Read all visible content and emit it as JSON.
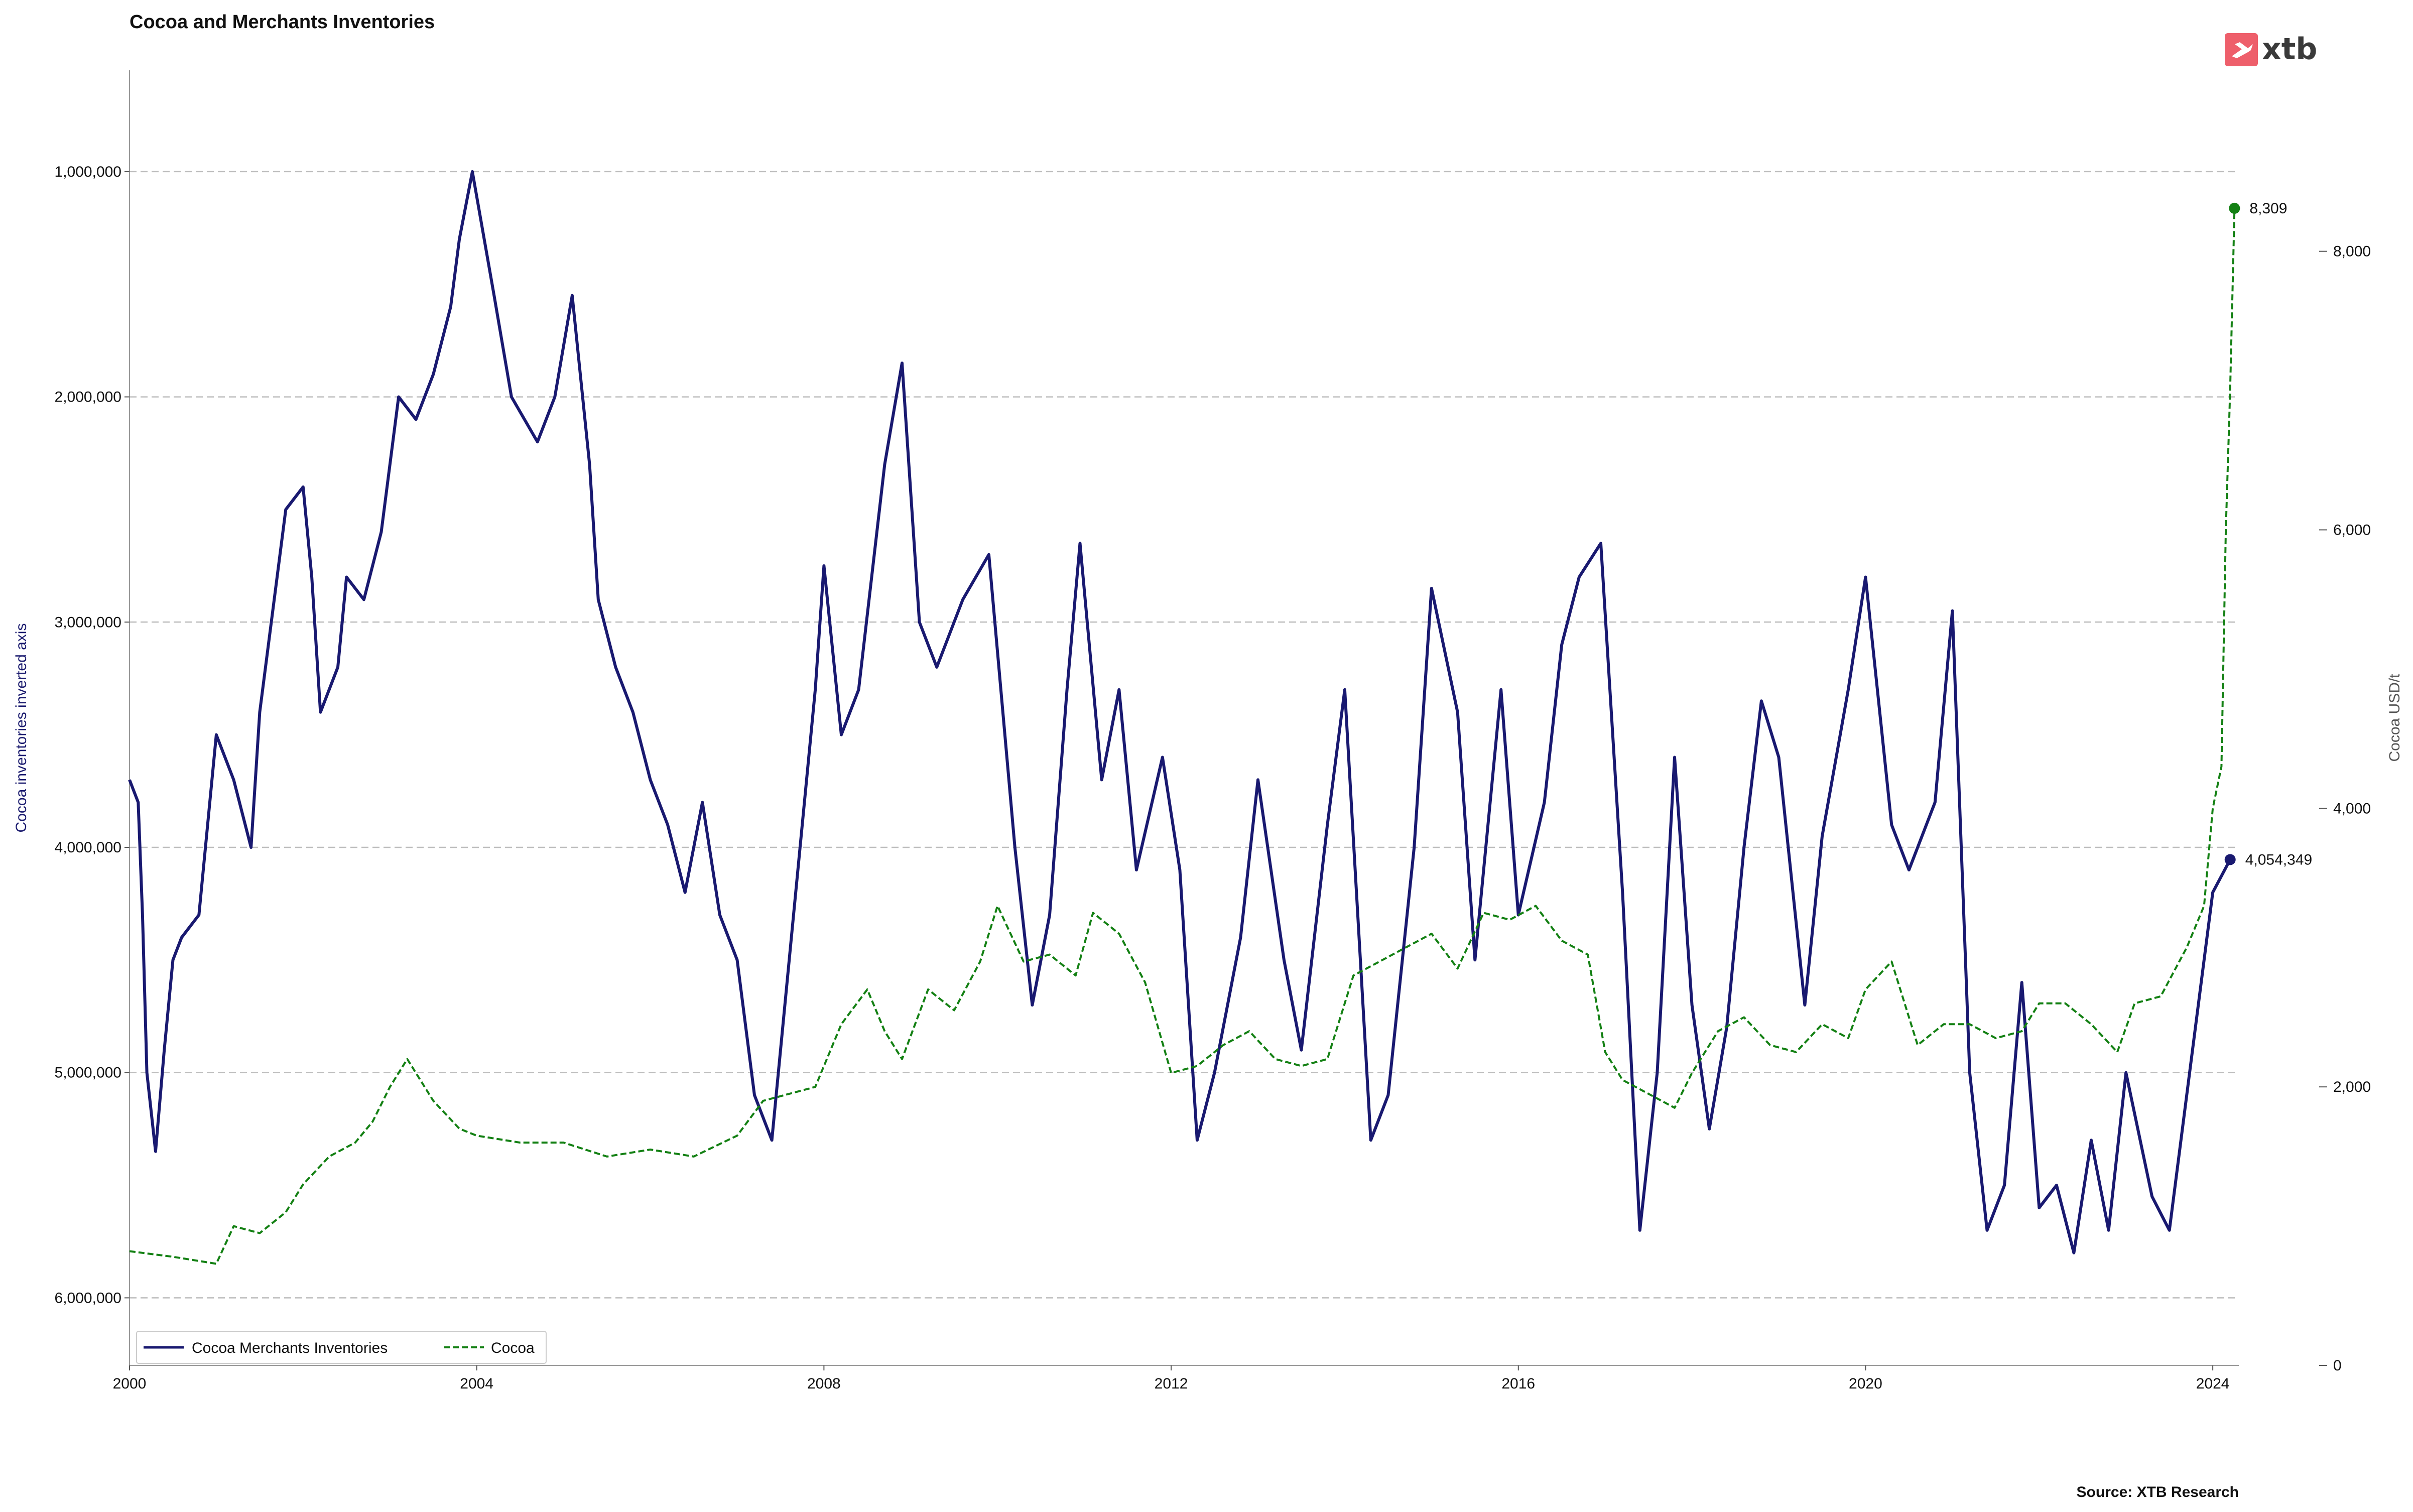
{
  "chart_data": {
    "type": "line",
    "title": "Cocoa and Merchants Inventories",
    "source": "Source: XTB Research",
    "logo_text": "xtb",
    "left_axis": {
      "label": "Cocoa inventories inverted axis",
      "inverted": true,
      "lim": [
        6300000,
        550000
      ],
      "ticks": [
        1000000,
        2000000,
        3000000,
        4000000,
        5000000,
        6000000
      ],
      "tick_labels": [
        "1,000,000",
        "2,000,000",
        "3,000,000",
        "4,000,000",
        "5,000,000",
        "6,000,000"
      ]
    },
    "right_axis": {
      "label": "Cocoa USD/t",
      "lim": [
        0,
        9300
      ],
      "ticks": [
        0,
        2000,
        4000,
        6000,
        8000
      ],
      "tick_labels": [
        "0",
        "2,000",
        "4,000",
        "6,000",
        "8,000"
      ]
    },
    "x_axis": {
      "lim": [
        2000,
        2024.3
      ],
      "ticks": [
        2000,
        2004,
        2008,
        2012,
        2016,
        2020,
        2024
      ],
      "tick_labels": [
        "2000",
        "2004",
        "2008",
        "2012",
        "2016",
        "2020",
        "2024"
      ]
    },
    "grid": "horizontal dashed at left-axis ticks",
    "legend_placement": "bottom-left",
    "end_labels": {
      "inventories": "4,054,349",
      "cocoa": "8,309"
    },
    "series": [
      {
        "name": "Cocoa Merchants Inventories",
        "axis": "left",
        "color": "#191970",
        "style": "solid",
        "x": [
          2000.0,
          2000.1,
          2000.15,
          2000.2,
          2000.3,
          2000.4,
          2000.5,
          2000.6,
          2000.8,
          2001.0,
          2001.2,
          2001.4,
          2001.5,
          2001.7,
          2001.8,
          2002.0,
          2002.1,
          2002.2,
          2002.4,
          2002.5,
          2002.7,
          2002.9,
          2003.1,
          2003.3,
          2003.5,
          2003.7,
          2003.8,
          2003.95,
          2004.2,
          2004.4,
          2004.7,
          2004.9,
          2005.1,
          2005.3,
          2005.4,
          2005.6,
          2005.8,
          2006.0,
          2006.2,
          2006.4,
          2006.6,
          2006.8,
          2007.0,
          2007.2,
          2007.4,
          2007.6,
          2007.9,
          2008.0,
          2008.2,
          2008.4,
          2008.7,
          2008.9,
          2009.1,
          2009.3,
          2009.6,
          2009.9,
          2010.2,
          2010.4,
          2010.6,
          2010.8,
          2010.95,
          2011.2,
          2011.4,
          2011.6,
          2011.9,
          2012.1,
          2012.3,
          2012.5,
          2012.8,
          2013.0,
          2013.3,
          2013.5,
          2013.8,
          2014.0,
          2014.3,
          2014.5,
          2014.8,
          2015.0,
          2015.3,
          2015.5,
          2015.8,
          2016.0,
          2016.3,
          2016.5,
          2016.7,
          2016.95,
          2017.2,
          2017.4,
          2017.6,
          2017.8,
          2018.0,
          2018.2,
          2018.4,
          2018.6,
          2018.8,
          2019.0,
          2019.3,
          2019.5,
          2019.8,
          2020.0,
          2020.3,
          2020.5,
          2020.8,
          2021.0,
          2021.2,
          2021.4,
          2021.6,
          2021.8,
          2022.0,
          2022.2,
          2022.4,
          2022.6,
          2022.8,
          2023.0,
          2023.3,
          2023.5,
          2023.8,
          2024.0,
          2024.2
        ],
        "y": [
          3700000,
          3800000,
          4300000,
          5000000,
          5350000,
          4900000,
          4500000,
          4400000,
          4300000,
          3500000,
          3700000,
          4000000,
          3400000,
          2800000,
          2500000,
          2400000,
          2800000,
          3400000,
          3200000,
          2800000,
          2900000,
          2600000,
          2000000,
          2100000,
          1900000,
          1600000,
          1300000,
          1000000,
          1550000,
          2000000,
          2200000,
          2000000,
          1550000,
          2300000,
          2900000,
          3200000,
          3400000,
          3700000,
          3900000,
          4200000,
          3800000,
          4300000,
          4500000,
          5100000,
          5300000,
          4500000,
          3300000,
          2750000,
          3500000,
          3300000,
          2300000,
          1850000,
          3000000,
          3200000,
          2900000,
          2700000,
          4000000,
          4700000,
          4300000,
          3300000,
          2650000,
          3700000,
          3300000,
          4100000,
          3600000,
          4100000,
          5300000,
          5000000,
          4400000,
          3700000,
          4500000,
          4900000,
          3900000,
          3300000,
          5300000,
          5100000,
          4000000,
          2850000,
          3400000,
          4500000,
          3300000,
          4300000,
          3800000,
          3100000,
          2800000,
          2650000,
          4200000,
          5700000,
          5000000,
          3600000,
          4700000,
          5250000,
          4800000,
          4000000,
          3350000,
          3600000,
          4700000,
          3950000,
          3300000,
          2800000,
          3900000,
          4100000,
          3800000,
          2950000,
          5000000,
          5700000,
          5500000,
          4600000,
          5600000,
          5500000,
          5800000,
          5300000,
          5700000,
          5000000,
          5550000,
          5700000,
          4800000,
          4200000,
          4054349
        ]
      },
      {
        "name": "Cocoa",
        "axis": "right",
        "color": "#138013",
        "style": "dashed",
        "x": [
          2000.0,
          2000.5,
          2001.0,
          2001.2,
          2001.5,
          2001.8,
          2002.0,
          2002.3,
          2002.6,
          2002.8,
          2003.0,
          2003.2,
          2003.5,
          2003.8,
          2004.0,
          2004.5,
          2005.0,
          2005.5,
          2006.0,
          2006.5,
          2007.0,
          2007.3,
          2007.6,
          2007.9,
          2008.2,
          2008.5,
          2008.7,
          2008.9,
          2009.2,
          2009.5,
          2009.8,
          2010.0,
          2010.3,
          2010.6,
          2010.9,
          2011.1,
          2011.4,
          2011.7,
          2012.0,
          2012.3,
          2012.6,
          2012.9,
          2013.2,
          2013.5,
          2013.8,
          2014.1,
          2014.4,
          2014.7,
          2015.0,
          2015.3,
          2015.6,
          2015.9,
          2016.2,
          2016.5,
          2016.8,
          2017.0,
          2017.2,
          2017.5,
          2017.8,
          2018.0,
          2018.3,
          2018.6,
          2018.9,
          2019.2,
          2019.5,
          2019.8,
          2020.0,
          2020.3,
          2020.6,
          2020.9,
          2021.2,
          2021.5,
          2021.8,
          2022.0,
          2022.3,
          2022.6,
          2022.9,
          2023.1,
          2023.4,
          2023.7,
          2023.9,
          2024.0,
          2024.1,
          2024.15,
          2024.2,
          2024.25
        ],
        "y": [
          820,
          780,
          730,
          1000,
          950,
          1100,
          1300,
          1500,
          1600,
          1750,
          2000,
          2200,
          1900,
          1700,
          1650,
          1600,
          1600,
          1500,
          1550,
          1500,
          1650,
          1900,
          1950,
          2000,
          2450,
          2700,
          2400,
          2200,
          2700,
          2550,
          2900,
          3300,
          2900,
          2950,
          2800,
          3250,
          3100,
          2750,
          2100,
          2150,
          2300,
          2400,
          2200,
          2150,
          2200,
          2800,
          2900,
          3000,
          3100,
          2850,
          3250,
          3200,
          3300,
          3050,
          2950,
          2250,
          2050,
          1950,
          1850,
          2100,
          2400,
          2500,
          2300,
          2250,
          2450,
          2350,
          2700,
          2900,
          2300,
          2450,
          2450,
          2350,
          2400,
          2600,
          2600,
          2450,
          2250,
          2600,
          2650,
          3000,
          3300,
          4000,
          4300,
          6000,
          7000,
          8309
        ]
      }
    ]
  }
}
